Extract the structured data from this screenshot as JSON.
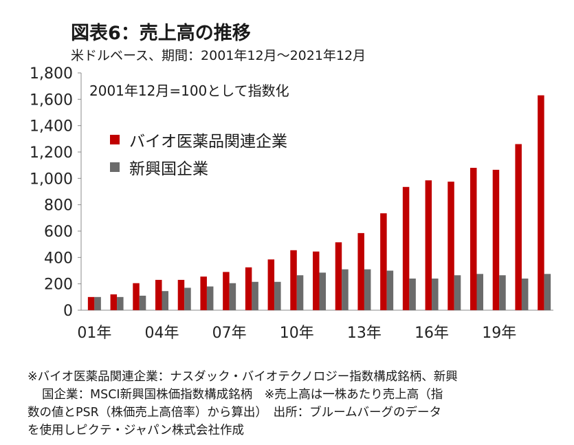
{
  "title": "図表6：売上高の推移",
  "subtitle": "米ドルベース、期間：2001年12月～2021年12月",
  "annotation": "2001年12月=100として指数化",
  "colors": {
    "series1": "#c00000",
    "series2": "#6b6b6b",
    "axis": "#888888"
  },
  "chart_data": {
    "type": "bar",
    "categories": [
      "01年",
      "02年",
      "03年",
      "04年",
      "05年",
      "06年",
      "07年",
      "08年",
      "09年",
      "10年",
      "11年",
      "12年",
      "13年",
      "14年",
      "15年",
      "16年",
      "17年",
      "18年",
      "19年",
      "20年",
      "21年"
    ],
    "tick_labels": [
      "01年",
      "04年",
      "07年",
      "10年",
      "13年",
      "16年",
      "19年"
    ],
    "tick_indices": [
      0,
      3,
      6,
      9,
      12,
      15,
      18
    ],
    "y_ticks": [
      "0",
      "200",
      "400",
      "600",
      "800",
      "1,000",
      "1,200",
      "1,400",
      "1,600",
      "1,800"
    ],
    "ylim": [
      0,
      1800
    ],
    "series": [
      {
        "name": "バイオ医薬品関連企業",
        "values": [
          100,
          120,
          205,
          230,
          230,
          255,
          290,
          325,
          385,
          455,
          445,
          515,
          585,
          735,
          935,
          985,
          975,
          1080,
          1065,
          1260,
          1630
        ]
      },
      {
        "name": "新興国企業",
        "values": [
          100,
          100,
          110,
          145,
          170,
          180,
          205,
          215,
          215,
          265,
          285,
          310,
          310,
          300,
          240,
          240,
          265,
          275,
          265,
          240,
          275
        ]
      }
    ],
    "legend_position": "top-left",
    "grid": false
  },
  "note": {
    "line1": "※バイオ医薬品関連企業：ナスダック・バイオテクノロジー指数構成銘柄、新興",
    "line2": "国企業：MSCI新興国株価指数構成銘柄　※売上高は一株あたり売上高（指",
    "line3": "数の値とPSR（株価売上高倍率）から算出）　出所：ブルームバーグのデータ",
    "line4": "を使用しピクテ・ジャパン株式会社作成"
  }
}
